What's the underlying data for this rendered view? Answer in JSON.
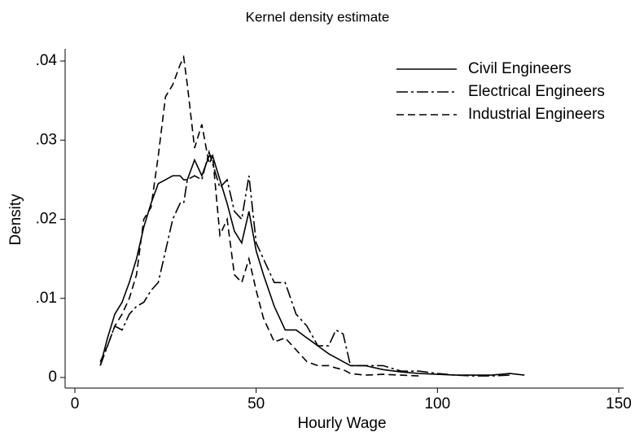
{
  "chart_data": {
    "type": "line",
    "title": "Kernel density estimate",
    "x_label": "Hourly Wage",
    "y_label": "Density",
    "xlim": [
      0,
      150
    ],
    "xticks": [
      0,
      50,
      100,
      150
    ],
    "ylim": [
      0,
      0.04
    ],
    "yticks": [
      0,
      {
        "value": 0.01,
        "label": ".01"
      },
      {
        "value": 0.02,
        "label": ".02"
      },
      {
        "value": 0.03,
        "label": ".03"
      },
      {
        "value": 0.04,
        "label": ".04"
      }
    ],
    "legend": "top-right",
    "x": [
      7,
      9,
      11,
      13,
      15,
      17,
      19,
      21,
      23,
      25,
      27,
      29,
      30,
      31,
      33,
      35,
      37,
      38,
      40,
      42,
      44,
      46,
      48,
      50,
      52,
      55,
      58,
      61,
      64,
      67,
      70,
      72,
      74,
      76,
      80,
      85,
      90,
      95,
      100,
      105,
      110,
      115,
      120,
      124
    ],
    "series": [
      {
        "name": "Civil Engineers",
        "color": "#000000",
        "style": "solid",
        "values": [
          0.0015,
          0.005,
          0.008,
          0.0095,
          0.012,
          0.015,
          0.019,
          0.022,
          0.0245,
          0.025,
          0.0255,
          0.0255,
          0.025,
          0.025,
          0.0275,
          0.0255,
          0.028,
          0.028,
          0.025,
          0.022,
          0.0185,
          0.017,
          0.021,
          0.016,
          0.013,
          0.009,
          0.006,
          0.006,
          0.005,
          0.004,
          0.003,
          0.0025,
          0.002,
          0.0015,
          0.0015,
          0.001,
          0.0007,
          0.0005,
          0.0004,
          0.0003,
          0.0003,
          0.0003,
          0.0005,
          0.0003
        ]
      },
      {
        "name": "Electrical Engineers",
        "color": "#000000",
        "style": "dashdot",
        "values": [
          0.0015,
          0.004,
          0.0065,
          0.006,
          0.008,
          0.009,
          0.0095,
          0.011,
          0.012,
          0.016,
          0.02,
          0.022,
          0.022,
          0.025,
          0.0255,
          0.025,
          0.0285,
          0.027,
          0.024,
          0.025,
          0.021,
          0.02,
          0.0255,
          0.017,
          0.015,
          0.012,
          0.012,
          0.008,
          0.0065,
          0.004,
          0.004,
          0.006,
          0.0055,
          0.0015,
          0.0015,
          0.0015,
          0.0008,
          0.0008,
          0.0005,
          0.0003,
          0.0002,
          0.0002,
          0.0003,
          null
        ]
      },
      {
        "name": "Industrial Engineers",
        "color": "#000000",
        "style": "dash",
        "values": [
          0.002,
          0.004,
          0.0065,
          0.008,
          0.01,
          0.013,
          0.02,
          0.0215,
          0.028,
          0.0355,
          0.037,
          0.0395,
          0.0405,
          0.037,
          0.029,
          0.032,
          0.027,
          0.028,
          0.018,
          0.02,
          0.013,
          0.012,
          0.015,
          0.011,
          0.0075,
          0.0045,
          0.005,
          0.0035,
          0.002,
          0.0015,
          0.0015,
          0.0012,
          0.001,
          0.0005,
          0.0003,
          0.0004,
          0.0003,
          0.0002,
          null,
          null,
          null,
          null,
          null,
          null
        ]
      }
    ]
  }
}
